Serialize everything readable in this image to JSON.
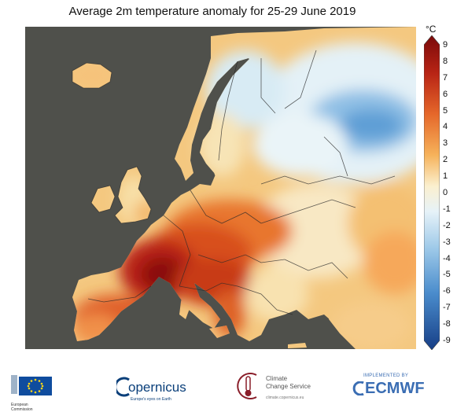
{
  "title": "Average 2m temperature anomaly for 25-29 June 2019",
  "colorbar": {
    "unit": "°C",
    "ticks": [
      "9",
      "8",
      "7",
      "6",
      "5",
      "4",
      "3",
      "2",
      "1",
      "0",
      "-1",
      "-2",
      "-3",
      "-4",
      "-5",
      "-6",
      "-7",
      "-8",
      "-9"
    ],
    "colors": {
      "hot_max": "#7a0a0a",
      "hot": "#b82415",
      "warm": "#e5672a",
      "mild": "#f6b25a",
      "neutral": "#fbf0cf",
      "cool": "#c7e2f3",
      "cold": "#5e9fd6",
      "cold_max": "#163e86"
    }
  },
  "map": {
    "sea_color": "#4f504b",
    "border_color": "#2a2a2a"
  },
  "logos": {
    "eu": {
      "line1": "European",
      "line2": "Commission"
    },
    "copernicus": {
      "name": "opernicus",
      "tagline": "Europe's eyes on Earth"
    },
    "c3s": {
      "line1": "Climate",
      "line2": "Change Service",
      "url": "climate.copernicus.eu"
    },
    "ecmwf": {
      "implemented": "IMPLEMENTED BY",
      "name": "ECMWF"
    }
  }
}
